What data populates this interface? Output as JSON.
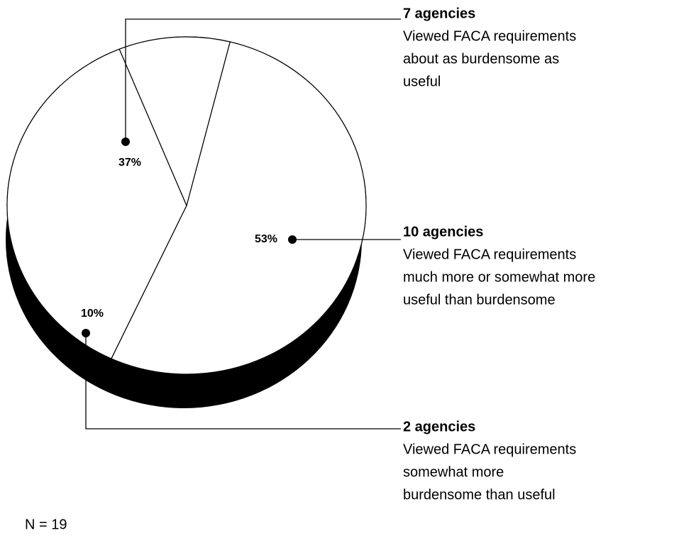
{
  "chart_data": {
    "type": "pie",
    "categories": [
      "10 agencies",
      "7 agencies",
      "2 agencies"
    ],
    "descriptions": [
      [
        "Viewed FACA requirements",
        "much more or somewhat more",
        "useful than burdensome"
      ],
      [
        "Viewed FACA requirements",
        "about as burdensome as",
        "useful"
      ],
      [
        "Viewed FACA requirements",
        "somewhat more",
        "burdensome than useful"
      ]
    ],
    "values": [
      53,
      37,
      10
    ],
    "value_labels": [
      "53%",
      "37%",
      "10%"
    ],
    "colors": [
      "#ffffff",
      "#ffffff",
      "#ffffff"
    ],
    "note": "N = 19"
  }
}
